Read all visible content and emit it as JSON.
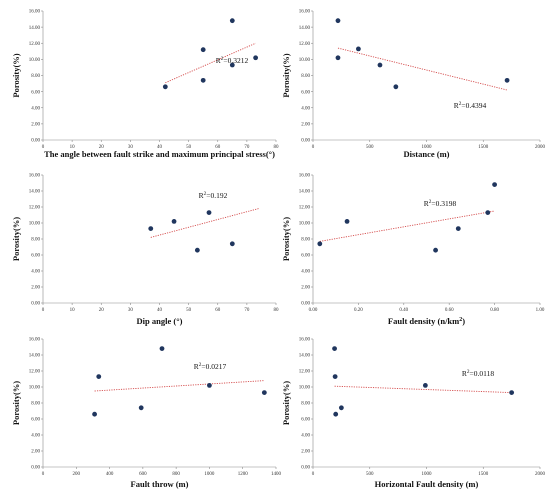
{
  "chart_data": [
    {
      "type": "scatter",
      "xlabel": "The angle between fault strike and maximum principal stress(°)",
      "ylabel": "Porosity(%)",
      "xlim": [
        0,
        80
      ],
      "ylim": [
        0,
        16
      ],
      "xticks": [
        0,
        10,
        20,
        30,
        40,
        50,
        60,
        70,
        80
      ],
      "yticks": [
        "0.00",
        "2.00",
        "4.00",
        "6.00",
        "8.00",
        "10.00",
        "12.00",
        "14.00",
        "16.00"
      ],
      "x": [
        42,
        55,
        55,
        65,
        65,
        73
      ],
      "y": [
        6.6,
        11.2,
        7.4,
        14.8,
        9.3,
        10.2
      ],
      "trendline": {
        "x": [
          42,
          73
        ],
        "y": [
          7.1,
          12.0
        ]
      },
      "r2_label": "R²=0.3212"
    },
    {
      "type": "scatter",
      "xlabel": "Distance (m)",
      "ylabel": "Porosity(%)",
      "xlim": [
        0,
        2000
      ],
      "ylim": [
        0,
        16
      ],
      "xticks": [
        0,
        500,
        1000,
        1500,
        2000
      ],
      "yticks": [
        "0.00",
        "2.00",
        "4.00",
        "6.00",
        "8.00",
        "10.00",
        "12.00",
        "14.00",
        "16.00"
      ],
      "x": [
        220,
        220,
        400,
        590,
        730,
        1710
      ],
      "y": [
        14.8,
        10.2,
        11.3,
        9.3,
        6.6,
        7.4
      ],
      "trendline": {
        "x": [
          220,
          1710
        ],
        "y": [
          11.4,
          6.2
        ]
      },
      "r2_label": "R²=0.4394"
    },
    {
      "type": "scatter",
      "xlabel": "Dip angle (°)",
      "ylabel": "Porosity(%)",
      "xlim": [
        0,
        80
      ],
      "ylim": [
        0,
        16
      ],
      "xticks": [
        0,
        10,
        20,
        30,
        40,
        50,
        60,
        70,
        80
      ],
      "yticks": [
        "0.00",
        "2.00",
        "4.00",
        "6.00",
        "8.00",
        "10.00",
        "12.00",
        "14.00",
        "16.00"
      ],
      "x": [
        37,
        45,
        53,
        57,
        65
      ],
      "y": [
        9.3,
        10.2,
        6.6,
        11.3,
        7.4
      ],
      "trendline": {
        "x": [
          37,
          74
        ],
        "y": [
          8.2,
          11.8
        ]
      },
      "r2_label": "R²=0.192"
    },
    {
      "type": "scatter",
      "xlabel": "Fault density (n/km²)",
      "ylabel": "Porosity(%)",
      "xlim": [
        0,
        1
      ],
      "ylim": [
        0,
        16
      ],
      "xticks": [
        "0.00",
        "0.20",
        "0.40",
        "0.60",
        "0.80",
        "1.00"
      ],
      "yticks": [
        "0.00",
        "2.00",
        "4.00",
        "6.00",
        "8.00",
        "10.00",
        "12.00",
        "14.00",
        "16.00"
      ],
      "x": [
        0.03,
        0.15,
        0.54,
        0.64,
        0.77,
        0.8
      ],
      "y": [
        7.4,
        10.2,
        6.6,
        9.3,
        11.3,
        14.8
      ],
      "trendline": {
        "x": [
          0.03,
          0.8
        ],
        "y": [
          7.7,
          11.5
        ]
      },
      "r2_label": "R²=0.3198"
    },
    {
      "type": "scatter",
      "xlabel": "Fault throw (m)",
      "ylabel": "Porosity(%)",
      "xlim": [
        0,
        1400
      ],
      "ylim": [
        0,
        16
      ],
      "xticks": [
        0,
        200,
        400,
        600,
        800,
        1000,
        1200,
        1400
      ],
      "yticks": [
        "0.00",
        "2.00",
        "4.00",
        "6.00",
        "8.00",
        "10.00",
        "12.00",
        "14.00",
        "16.00"
      ],
      "x": [
        310,
        335,
        590,
        715,
        1000,
        1330
      ],
      "y": [
        6.6,
        11.3,
        7.4,
        14.8,
        10.2,
        9.3
      ],
      "trendline": {
        "x": [
          310,
          1330
        ],
        "y": [
          9.5,
          10.8
        ]
      },
      "r2_label": "R²=0.0217"
    },
    {
      "type": "scatter",
      "xlabel": "Horizontal Fault density (m)",
      "ylabel": "Porosity(%)",
      "xlim": [
        0,
        2000
      ],
      "ylim": [
        0,
        16
      ],
      "xticks": [
        0,
        500,
        1000,
        1500,
        2000
      ],
      "yticks": [
        "0.00",
        "2.00",
        "4.00",
        "6.00",
        "8.00",
        "10.00",
        "12.00",
        "14.00",
        "16.00"
      ],
      "x": [
        190,
        195,
        200,
        250,
        990,
        1750
      ],
      "y": [
        14.8,
        11.3,
        6.6,
        7.4,
        10.2,
        9.3
      ],
      "trendline": {
        "x": [
          190,
          1750
        ],
        "y": [
          10.1,
          9.3
        ]
      },
      "r2_label": "R²=0.0118"
    }
  ]
}
